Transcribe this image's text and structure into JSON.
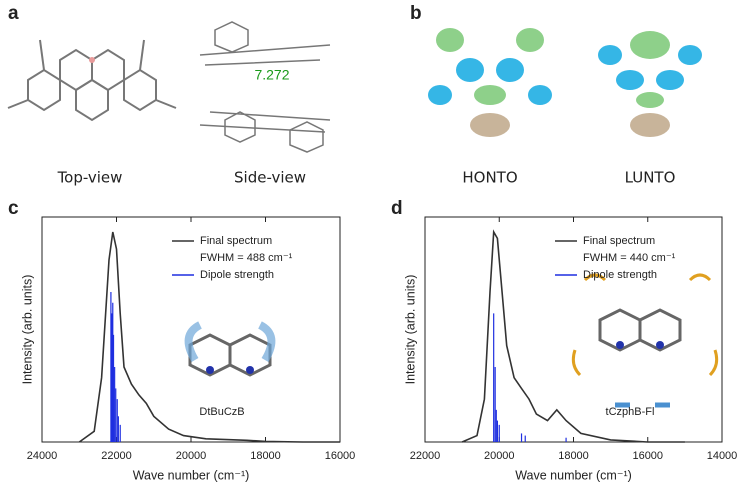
{
  "figure": {
    "panels": [
      {
        "label": "a",
        "captions": [
          "Top-view",
          "Side-view"
        ]
      },
      {
        "label": "b",
        "captions": [
          "HONTO",
          "LUNTO"
        ]
      }
    ],
    "distance": "7.272"
  },
  "chart_data": [
    {
      "type": "line",
      "label": "c",
      "xlabel": "Wave number (cm⁻¹)",
      "ylabel": "Intensity (arb. units)",
      "annotation": "FWHM = 488 cm⁻¹",
      "molecule": "DtBuCzB",
      "xlim": [
        24000,
        16000
      ],
      "xticks": [
        24000,
        22000,
        20000,
        18000,
        16000
      ],
      "ylim": [
        0,
        1.05
      ],
      "series": [
        {
          "name": "Final spectrum",
          "color": "#333333",
          "style": "line",
          "x": [
            23000,
            22600,
            22400,
            22200,
            22100,
            22000,
            21900,
            21800,
            21600,
            21400,
            21200,
            21000,
            20600,
            20200,
            19600,
            18500,
            18000,
            17000,
            16000
          ],
          "values": [
            0,
            0.05,
            0.3,
            0.85,
            0.98,
            0.9,
            0.6,
            0.35,
            0.27,
            0.22,
            0.18,
            0.12,
            0.06,
            0.03,
            0.015,
            0.008,
            0.003,
            0,
            0
          ]
        },
        {
          "name": "Dipole strength",
          "color": "#1f2fe0",
          "style": "stick",
          "x": [
            22150,
            22120,
            22100,
            22080,
            22050,
            22020,
            21980,
            21950,
            21900
          ],
          "values": [
            0.7,
            0.6,
            0.65,
            0.5,
            0.35,
            0.25,
            0.2,
            0.12,
            0.08
          ]
        }
      ]
    },
    {
      "type": "line",
      "label": "d",
      "xlabel": "Wave number (cm⁻¹)",
      "ylabel": "Intensity (arb. units)",
      "annotation": "FWHM = 440 cm⁻¹",
      "molecule": "tCzphB-Fl",
      "xlim": [
        22000,
        14000
      ],
      "xticks": [
        22000,
        20000,
        18000,
        16000,
        14000
      ],
      "ylim": [
        0,
        1.05
      ],
      "series": [
        {
          "name": "Final spectrum",
          "color": "#333333",
          "style": "line",
          "x": [
            21000,
            20600,
            20400,
            20250,
            20150,
            20050,
            19900,
            19800,
            19600,
            19400,
            19200,
            19000,
            18700,
            18450,
            18200,
            17800,
            17000,
            16000,
            15000
          ],
          "values": [
            0,
            0.03,
            0.2,
            0.7,
            0.98,
            0.95,
            0.65,
            0.45,
            0.3,
            0.25,
            0.2,
            0.13,
            0.1,
            0.15,
            0.1,
            0.04,
            0.01,
            0,
            0
          ]
        },
        {
          "name": "Dipole strength",
          "color": "#1f2fe0",
          "style": "stick",
          "x": [
            20150,
            20110,
            20080,
            20050,
            20000,
            19400,
            19300,
            18200
          ],
          "values": [
            0.6,
            0.35,
            0.15,
            0.1,
            0.08,
            0.04,
            0.03,
            0.02
          ]
        }
      ]
    }
  ]
}
